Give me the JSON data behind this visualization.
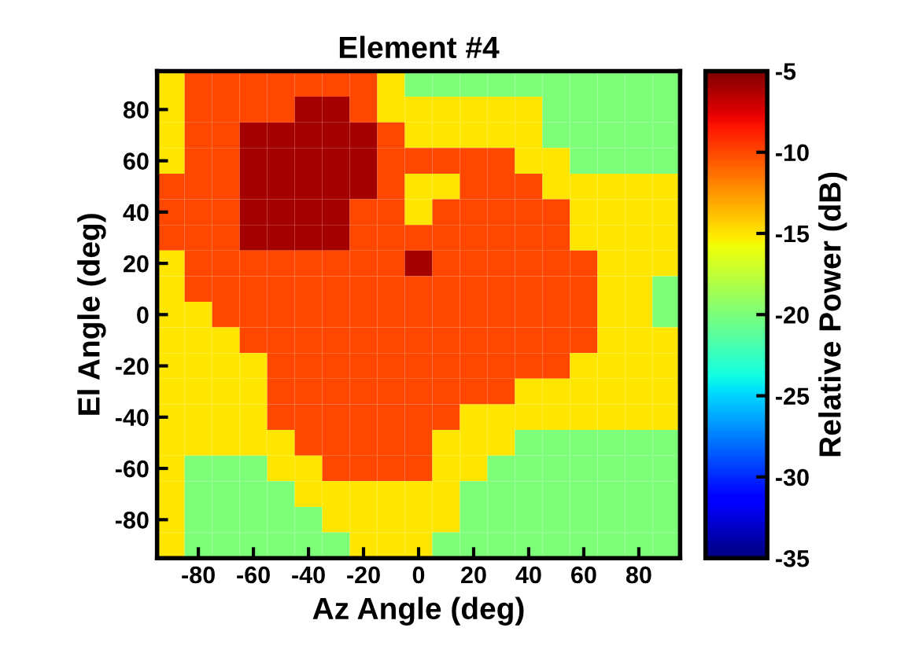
{
  "chart_data": {
    "type": "heatmap",
    "title": "Element #4",
    "xlabel": "Az Angle (deg)",
    "ylabel": "El Angle (deg)",
    "clabel": "Relative Power (dB)",
    "categories": [
      null,
      "-80",
      null,
      "-60",
      null,
      "-40",
      null,
      "-20",
      null,
      "0",
      null,
      "20",
      null,
      "40",
      null,
      "60",
      null,
      "80",
      null
    ],
    "y_categories": [
      null,
      "80",
      null,
      "60",
      null,
      "40",
      null,
      "20",
      null,
      "0",
      null,
      "-20",
      null,
      "-40",
      null,
      "-60",
      null,
      "-80",
      null
    ],
    "cells": [
      [
        -15,
        -10,
        -10,
        -10,
        -10,
        -10,
        -10,
        -10,
        -15,
        -20,
        -20,
        -20,
        -20,
        -20,
        -20,
        -20,
        -20,
        -20,
        -20
      ],
      [
        -15,
        -10,
        -10,
        -10,
        -10,
        -6,
        -6,
        -10,
        -15,
        -15,
        -15,
        -15,
        -15,
        -15,
        -20,
        -20,
        -20,
        -20,
        -20
      ],
      [
        -15,
        -10,
        -10,
        -6,
        -6,
        -6,
        -6,
        -6,
        -10,
        -15,
        -15,
        -15,
        -15,
        -15,
        -20,
        -20,
        -20,
        -20,
        -20
      ],
      [
        -15,
        -10,
        -10,
        -6,
        -6,
        -6,
        -6,
        -6,
        -10,
        -10,
        -10,
        -10,
        -10,
        -15,
        -15,
        -20,
        -20,
        -20,
        -20
      ],
      [
        -10,
        -10,
        -10,
        -6,
        -6,
        -6,
        -6,
        -6,
        -10,
        -15,
        -15,
        -10,
        -10,
        -10,
        -15,
        -15,
        -15,
        -15,
        -15
      ],
      [
        -10,
        -10,
        -10,
        -6,
        -6,
        -6,
        -6,
        -10,
        -10,
        -15,
        -10,
        -10,
        -10,
        -10,
        -10,
        -15,
        -15,
        -15,
        -15
      ],
      [
        -10,
        -10,
        -10,
        -6,
        -6,
        -6,
        -6,
        -10,
        -10,
        -10,
        -10,
        -10,
        -10,
        -10,
        -10,
        -15,
        -15,
        -15,
        -15
      ],
      [
        -15,
        -10,
        -10,
        -10,
        -10,
        -10,
        -10,
        -10,
        -10,
        -6,
        -10,
        -10,
        -10,
        -10,
        -10,
        -10,
        -15,
        -15,
        -15
      ],
      [
        -15,
        -10,
        -10,
        -10,
        -10,
        -10,
        -10,
        -10,
        -10,
        -10,
        -10,
        -10,
        -10,
        -10,
        -10,
        -10,
        -15,
        -15,
        -20
      ],
      [
        -15,
        -15,
        -10,
        -10,
        -10,
        -10,
        -10,
        -10,
        -10,
        -10,
        -10,
        -10,
        -10,
        -10,
        -10,
        -10,
        -15,
        -15,
        -20
      ],
      [
        -15,
        -15,
        -15,
        -10,
        -10,
        -10,
        -10,
        -10,
        -10,
        -10,
        -10,
        -10,
        -10,
        -10,
        -10,
        -10,
        -15,
        -15,
        -15
      ],
      [
        -15,
        -15,
        -15,
        -15,
        -10,
        -10,
        -10,
        -10,
        -10,
        -10,
        -10,
        -10,
        -10,
        -10,
        -10,
        -15,
        -15,
        -15,
        -15
      ],
      [
        -15,
        -15,
        -15,
        -15,
        -10,
        -10,
        -10,
        -10,
        -10,
        -10,
        -10,
        -10,
        -10,
        -15,
        -15,
        -15,
        -15,
        -15,
        -15
      ],
      [
        -15,
        -15,
        -15,
        -15,
        -10,
        -10,
        -10,
        -10,
        -10,
        -10,
        -10,
        -15,
        -15,
        -15,
        -15,
        -15,
        -15,
        -15,
        -15
      ],
      [
        -15,
        -15,
        -15,
        -15,
        -15,
        -10,
        -10,
        -10,
        -10,
        -10,
        -15,
        -15,
        -15,
        -20,
        -20,
        -20,
        -20,
        -20,
        -20
      ],
      [
        -15,
        -20,
        -20,
        -20,
        -15,
        -15,
        -10,
        -10,
        -10,
        -10,
        -15,
        -15,
        -20,
        -20,
        -20,
        -20,
        -20,
        -20,
        -20
      ],
      [
        -15,
        -20,
        -20,
        -20,
        -20,
        -15,
        -15,
        -15,
        -15,
        -15,
        -15,
        -20,
        -20,
        -20,
        -20,
        -20,
        -20,
        -20,
        -20
      ],
      [
        -15,
        -20,
        -20,
        -20,
        -20,
        -20,
        -15,
        -15,
        -15,
        -15,
        -15,
        -20,
        -20,
        -20,
        -20,
        -20,
        -20,
        -20,
        -20
      ],
      [
        -15,
        -20,
        -20,
        -20,
        -20,
        -20,
        -20,
        -15,
        -15,
        -15,
        -20,
        -20,
        -20,
        -20,
        -20,
        -20,
        -20,
        -20,
        -20
      ]
    ],
    "clim": [
      -35,
      -5
    ],
    "cticks": [
      -35,
      -30,
      -25,
      -20,
      -15,
      -10,
      -5
    ]
  }
}
